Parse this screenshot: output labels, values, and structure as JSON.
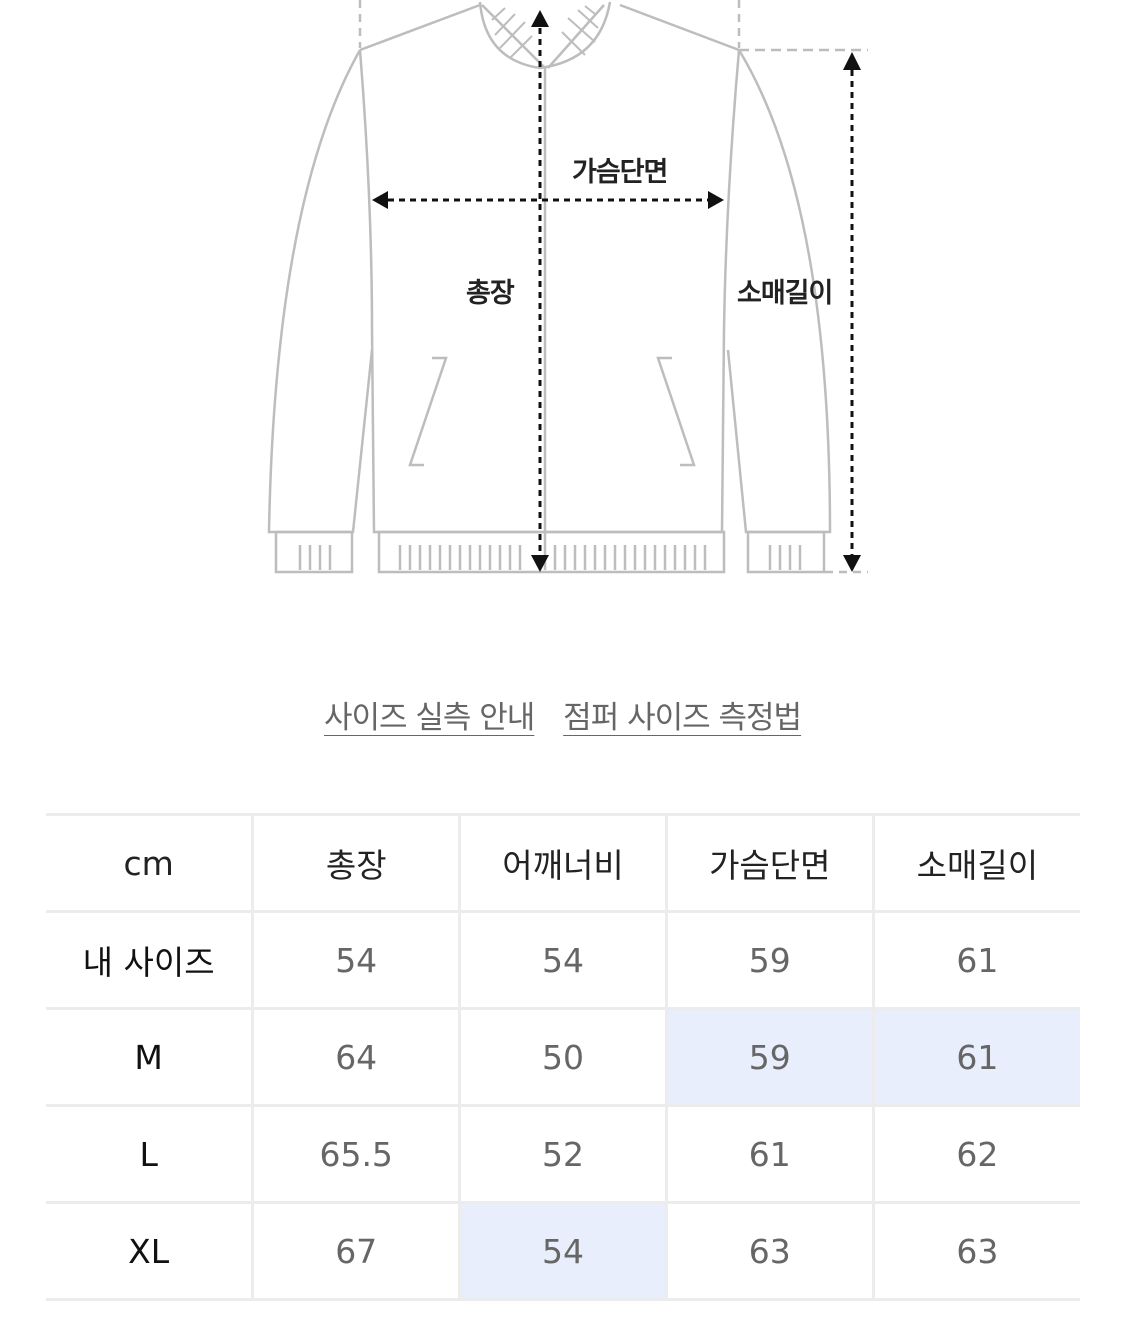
{
  "diagram": {
    "labels": {
      "chest": "가슴단면",
      "length": "총장",
      "sleeve": "소매길이"
    }
  },
  "links": [
    {
      "label": "사이즈 실측 안내"
    },
    {
      "label": "점퍼 사이즈 측정법"
    }
  ],
  "size_table": {
    "unit": "cm",
    "columns": [
      "총장",
      "어깨너비",
      "가슴단면",
      "소매길이"
    ],
    "highlight_color": "#e8eefb",
    "rows": [
      {
        "size": "내 사이즈",
        "values": [
          "54",
          "54",
          "59",
          "61"
        ],
        "highlighted": []
      },
      {
        "size": "M",
        "values": [
          "64",
          "50",
          "59",
          "61"
        ],
        "highlighted": [
          2,
          3
        ]
      },
      {
        "size": "L",
        "values": [
          "65.5",
          "52",
          "61",
          "62"
        ],
        "highlighted": []
      },
      {
        "size": "XL",
        "values": [
          "67",
          "54",
          "63",
          "63"
        ],
        "highlighted": [
          1
        ]
      }
    ]
  }
}
